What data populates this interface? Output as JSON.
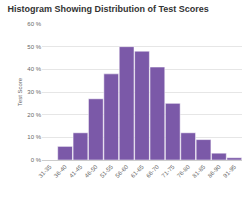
{
  "chart_data": {
    "type": "bar",
    "title": "Histogram Showing Distribution of Test Scores",
    "y_label": "Test Score",
    "categories": [
      "31-35",
      "36-40",
      "41-45",
      "46-50",
      "51-55",
      "56-60",
      "61-65",
      "66-70",
      "71-75",
      "76-80",
      "81-85",
      "86-90",
      "91-95"
    ],
    "values": [
      0,
      6,
      12,
      27,
      38,
      50,
      48,
      41,
      25,
      12,
      9,
      3,
      1
    ],
    "color": "#7b59a8",
    "ylim": [
      0,
      60
    ],
    "yticks": [
      {
        "value": 0,
        "label": "0 %"
      },
      {
        "value": 10,
        "label": "10 %"
      },
      {
        "value": 20,
        "label": "20 %"
      },
      {
        "value": 30,
        "label": "30 %"
      },
      {
        "value": 40,
        "label": "40 %"
      },
      {
        "value": 50,
        "label": "50 %"
      },
      {
        "value": 60,
        "label": "60 %"
      }
    ],
    "grid": true
  }
}
